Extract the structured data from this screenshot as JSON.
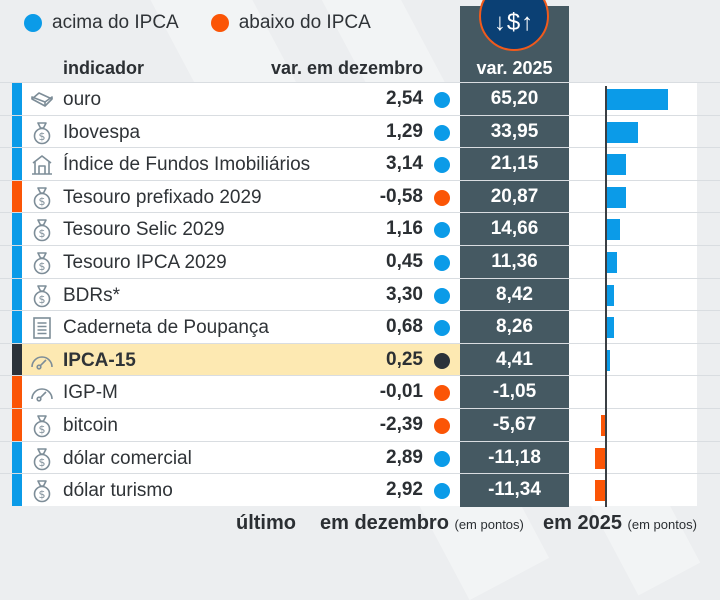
{
  "legend": [
    {
      "label": "acima do IPCA",
      "color": "#0b9be8"
    },
    {
      "label": "abaixo do IPCA",
      "color": "#fb5506"
    }
  ],
  "colors": {
    "above": "#0b9be8",
    "below": "#fb5506",
    "reference": "#2b323a",
    "highlight_row": "#fde9b2",
    "dark_column": "#455962",
    "badge_bg": "#0b4074",
    "badge_ring": "#f05a1c"
  },
  "header": {
    "indicator": "indicador",
    "december": "var. em dezembro",
    "year": "var. 2025",
    "badge_glyph": "↓$↑"
  },
  "footer": {
    "last": "último",
    "december": "em dezembro",
    "december_unit": "(em pontos)",
    "year": "em 2025",
    "year_unit": "(em pontos)"
  },
  "chart_data": {
    "type": "table",
    "title": "",
    "columns": [
      "indicador",
      "var. em dezembro",
      "var. 2025"
    ],
    "xlim": [
      -15,
      95
    ],
    "rows": [
      {
        "name": "ouro",
        "icon": "gold-bar-icon",
        "dec": "2,54",
        "dec_value": 2.54,
        "status": "above",
        "y2025": "65,20",
        "y2025_value": 65.2
      },
      {
        "name": "Ibovespa",
        "icon": "money-bag-icon",
        "dec": "1,29",
        "dec_value": 1.29,
        "status": "above",
        "y2025": "33,95",
        "y2025_value": 33.95
      },
      {
        "name": "Índice de Fundos Imobiliários",
        "icon": "building-icon",
        "dec": "3,14",
        "dec_value": 3.14,
        "status": "above",
        "y2025": "21,15",
        "y2025_value": 21.15
      },
      {
        "name": "Tesouro prefixado 2029",
        "icon": "money-bag-icon",
        "dec": "-0,58",
        "dec_value": -0.58,
        "status": "below",
        "y2025": "20,87",
        "y2025_value": 20.87,
        "bar_status": "above"
      },
      {
        "name": "Tesouro Selic 2029",
        "icon": "money-bag-icon",
        "dec": "1,16",
        "dec_value": 1.16,
        "status": "above",
        "y2025": "14,66",
        "y2025_value": 14.66
      },
      {
        "name": "Tesouro IPCA 2029",
        "icon": "money-bag-icon",
        "dec": "0,45",
        "dec_value": 0.45,
        "status": "above",
        "y2025": "11,36",
        "y2025_value": 11.36
      },
      {
        "name": "BDRs*",
        "icon": "money-bag-icon",
        "dec": "3,30",
        "dec_value": 3.3,
        "status": "above",
        "y2025": "8,42",
        "y2025_value": 8.42
      },
      {
        "name": "Caderneta de Poupança",
        "icon": "document-icon",
        "dec": "0,68",
        "dec_value": 0.68,
        "status": "above",
        "y2025": "8,26",
        "y2025_value": 8.26
      },
      {
        "name": "IPCA-15",
        "icon": "gauge-icon",
        "dec": "0,25",
        "dec_value": 0.25,
        "status": "reference",
        "y2025": "4,41",
        "y2025_value": 4.41,
        "highlight": true,
        "bar_status": "above"
      },
      {
        "name": "IGP-M",
        "icon": "gauge-icon",
        "dec": "-0,01",
        "dec_value": -0.01,
        "status": "below",
        "y2025": "-1,05",
        "y2025_value": -1.05
      },
      {
        "name": "bitcoin",
        "icon": "money-bag-icon",
        "dec": "-2,39",
        "dec_value": -2.39,
        "status": "below",
        "y2025": "-5,67",
        "y2025_value": -5.67
      },
      {
        "name": "dólar comercial",
        "icon": "money-bag-icon",
        "dec": "2,89",
        "dec_value": 2.89,
        "status": "above",
        "y2025": "-11,18",
        "y2025_value": -11.18,
        "bar_status": "below"
      },
      {
        "name": "dólar turismo",
        "icon": "money-bag-icon",
        "dec": "2,92",
        "dec_value": 2.92,
        "status": "above",
        "y2025": "-11,34",
        "y2025_value": -11.34,
        "bar_status": "below"
      }
    ]
  }
}
